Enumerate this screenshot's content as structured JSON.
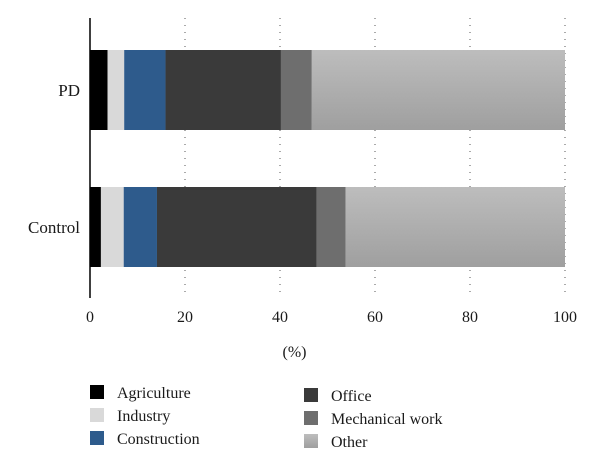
{
  "chart_data": {
    "type": "bar",
    "orientation": "horizontal",
    "stacked": true,
    "categories": [
      "PD",
      "Control"
    ],
    "series": [
      {
        "name": "Agriculture",
        "color": "#000000",
        "values": [
          3.7,
          2.3
        ]
      },
      {
        "name": "Industry",
        "color": "#d9d9d9",
        "values": [
          3.5,
          4.8
        ]
      },
      {
        "name": "Construction",
        "color": "#2e5b8c",
        "values": [
          8.7,
          7.0
        ]
      },
      {
        "name": "Office",
        "color": "#3a3a3a",
        "values": [
          24.3,
          33.6
        ]
      },
      {
        "name": "Mechanical work",
        "color": "#6e6e6e",
        "values": [
          6.5,
          6.1
        ]
      },
      {
        "name": "Other",
        "color": "#b3b3b3",
        "values": [
          53.3,
          46.2
        ]
      }
    ],
    "xlabel": "(%)",
    "ylabel": "",
    "xlim": [
      0,
      100
    ],
    "xticks": [
      0,
      20,
      40,
      60,
      80,
      100
    ],
    "grid": "vertical dotted",
    "legend": "bottom"
  }
}
